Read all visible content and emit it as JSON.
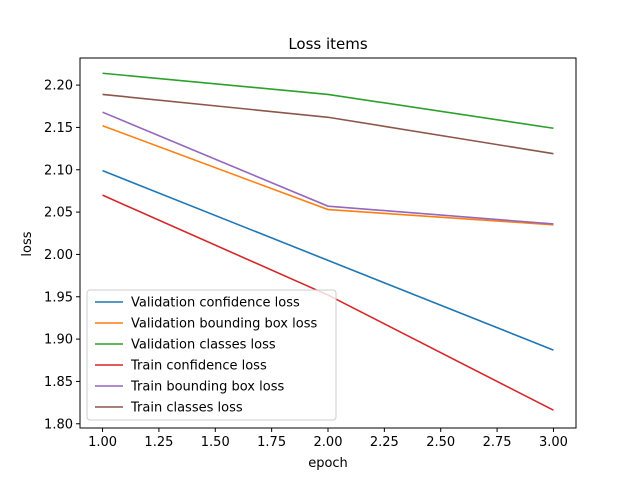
{
  "chart_data": {
    "type": "line",
    "title": "Loss items",
    "xlabel": "epoch",
    "ylabel": "loss",
    "xlim": [
      0.9,
      3.1
    ],
    "ylim": [
      1.795,
      2.232
    ],
    "xticks": [
      "1.00",
      "1.25",
      "1.50",
      "1.75",
      "2.00",
      "2.25",
      "2.50",
      "2.75",
      "3.00"
    ],
    "yticks": [
      "1.80",
      "1.85",
      "1.90",
      "1.95",
      "2.00",
      "2.05",
      "2.10",
      "2.15",
      "2.20"
    ],
    "grid": false,
    "legend_position": "lower-left",
    "x": [
      1,
      2,
      3
    ],
    "series": [
      {
        "name": "Validation confidence loss",
        "color": "#1f77b4",
        "values": [
          2.099,
          1.993,
          1.887
        ]
      },
      {
        "name": "Validation bounding box loss",
        "color": "#ff7f0e",
        "values": [
          2.152,
          2.053,
          2.035
        ]
      },
      {
        "name": "Validation classes loss",
        "color": "#2ca02c",
        "values": [
          2.214,
          2.189,
          2.149
        ]
      },
      {
        "name": "Train confidence loss",
        "color": "#d62728",
        "values": [
          2.07,
          1.952,
          1.816
        ]
      },
      {
        "name": "Train bounding box loss",
        "color": "#9467bd",
        "values": [
          2.168,
          2.057,
          2.036
        ]
      },
      {
        "name": "Train classes loss",
        "color": "#8c564b",
        "values": [
          2.189,
          2.162,
          2.119
        ]
      }
    ]
  }
}
